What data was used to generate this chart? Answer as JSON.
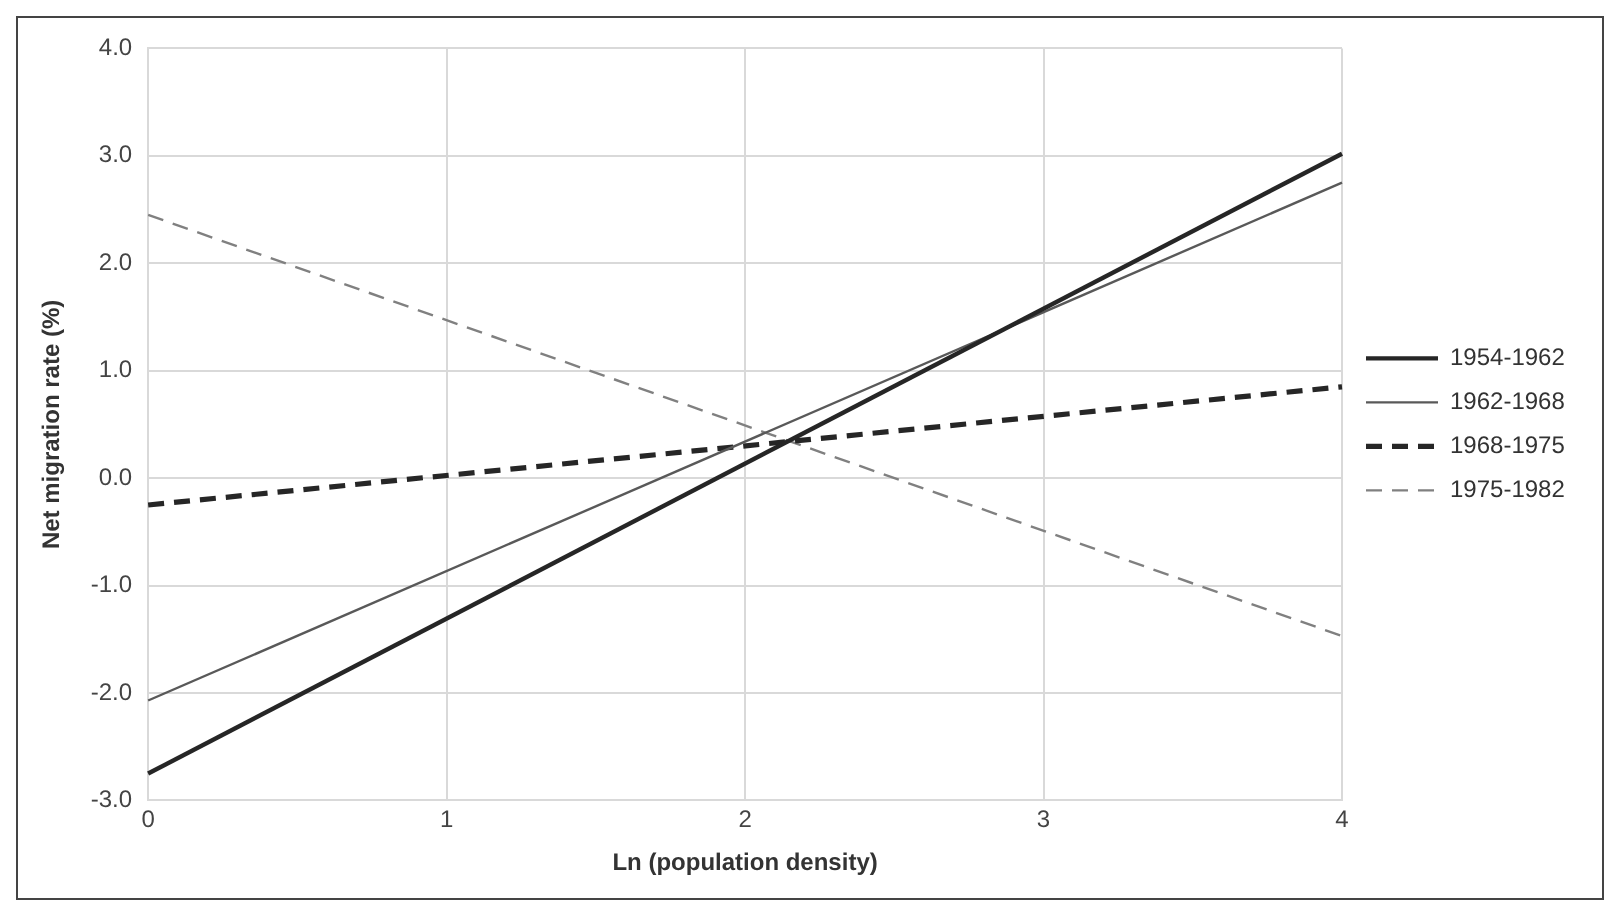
{
  "chart_data": {
    "type": "line",
    "xlabel": "Ln (population density)",
    "ylabel": "Net migration rate (%)",
    "x": [
      0,
      4
    ],
    "xlim": [
      0,
      4
    ],
    "xticks": [
      0,
      1,
      2,
      3,
      4
    ],
    "ylim": [
      -3,
      4
    ],
    "yticks": [
      {
        "value": -3,
        "label": "-3.0"
      },
      {
        "value": -2,
        "label": "-2.0"
      },
      {
        "value": -1,
        "label": "-1.0"
      },
      {
        "value": 0,
        "label": "0.0"
      },
      {
        "value": 1,
        "label": "1.0"
      },
      {
        "value": 2,
        "label": "2.0"
      },
      {
        "value": 3,
        "label": "3.0"
      },
      {
        "value": 4,
        "label": "4.0"
      }
    ],
    "grid": true,
    "legend": "right",
    "marker": "none",
    "series": [
      {
        "name": "1954-1962",
        "color": "#262626",
        "line_style": "solid",
        "values": [
          -2.75,
          3.02
        ]
      },
      {
        "name": "1962-1968",
        "color": "#595959",
        "line_style": "solid",
        "values": [
          -2.07,
          2.75
        ]
      },
      {
        "name": "1968-1975",
        "color": "#262626",
        "line_style": "dashed",
        "values": [
          -0.25,
          0.85
        ]
      },
      {
        "name": "1975-1982",
        "color": "#808080",
        "line_style": "dashed",
        "values": [
          2.45,
          -1.47
        ]
      }
    ]
  }
}
